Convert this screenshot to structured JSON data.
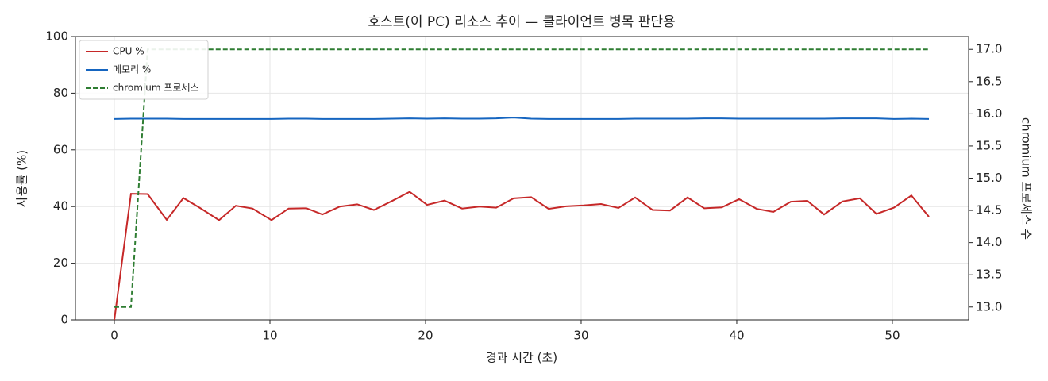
{
  "chart_data": {
    "type": "line",
    "title": "호스트(이 PC) 리소스 추이 — 클라이언트 병목 판단용",
    "x_label": "경과 시간 (초)",
    "y_label": "사용률 (%)",
    "y2_label": "chromium 프로세스 수",
    "x": [
      0,
      1.07,
      2.14,
      3.37,
      4.44,
      5.51,
      6.73,
      7.81,
      8.88,
      10.1,
      11.2,
      12.35,
      13.37,
      14.49,
      15.61,
      16.68,
      17.86,
      18.98,
      20.1,
      21.22,
      22.35,
      23.47,
      24.54,
      25.66,
      26.79,
      27.91,
      29.03,
      30.15,
      31.28,
      32.4,
      33.47,
      34.59,
      35.71,
      36.84,
      37.91,
      39.03,
      40.15,
      41.28,
      42.35,
      43.47,
      44.54,
      45.61,
      46.79,
      47.91,
      48.98,
      50.1,
      51.22,
      52.35
    ],
    "series": [
      {
        "name": "CPU %",
        "color": "#c62828",
        "style": "solid",
        "axis": "y",
        "values": [
          0,
          44.5,
          44.4,
          35.3,
          43,
          39.5,
          35.2,
          40.3,
          39.3,
          35.2,
          39.3,
          39.4,
          37.2,
          40,
          40.8,
          38.8,
          42,
          45.2,
          40.6,
          42.1,
          39.3,
          40,
          39.6,
          42.9,
          43.3,
          39.2,
          40.1,
          40.4,
          40.9,
          39.5,
          43.2,
          38.8,
          38.6,
          43.2,
          39.4,
          39.7,
          42.6,
          39.2,
          38.1,
          41.7,
          42,
          37.2,
          41.8,
          42.9,
          37.4,
          39.6,
          43.9,
          36.4
        ]
      },
      {
        "name": "메모리 %",
        "color": "#1565c0",
        "style": "solid",
        "axis": "y",
        "values": [
          70.9,
          71,
          71,
          71,
          70.9,
          70.9,
          70.9,
          70.9,
          70.9,
          70.9,
          71,
          71,
          70.9,
          70.9,
          70.9,
          70.9,
          71,
          71.1,
          71,
          71.1,
          71,
          71,
          71.1,
          71.4,
          71,
          70.9,
          70.9,
          70.9,
          70.9,
          70.9,
          71,
          71,
          71,
          71,
          71.1,
          71.1,
          71,
          71,
          71,
          71,
          71,
          71,
          71.1,
          71.1,
          71.1,
          70.9,
          71,
          70.9
        ]
      },
      {
        "name": "chromium 프로세스",
        "color": "#2e7d32",
        "style": "dashed",
        "axis": "y2",
        "values": [
          13,
          13,
          17,
          17,
          17,
          17,
          17,
          17,
          17,
          17,
          17,
          17,
          17,
          17,
          17,
          17,
          17,
          17,
          17,
          17,
          17,
          17,
          17,
          17,
          17,
          17,
          17,
          17,
          17,
          17,
          17,
          17,
          17,
          17,
          17,
          17,
          17,
          17,
          17,
          17,
          17,
          17,
          17,
          17,
          17,
          17,
          17,
          17
        ]
      }
    ],
    "xlim": [
      -2.5,
      54.9
    ],
    "xticks": [
      0,
      10,
      20,
      30,
      40,
      50
    ],
    "ylim": [
      0,
      100
    ],
    "yticks": [
      0,
      20,
      40,
      60,
      80,
      100
    ],
    "y2lim": [
      12.8,
      17.2
    ],
    "y2ticks": [
      {
        "value": 13,
        "label": "13.0"
      },
      13.5,
      {
        "value": 14,
        "label": "14.0"
      },
      14.5,
      {
        "value": 15,
        "label": "15.0"
      },
      15.5,
      {
        "value": 16,
        "label": "16.0"
      },
      16.5,
      {
        "value": 17,
        "label": "17.0"
      }
    ],
    "grid": true,
    "legend": "upper-left"
  }
}
